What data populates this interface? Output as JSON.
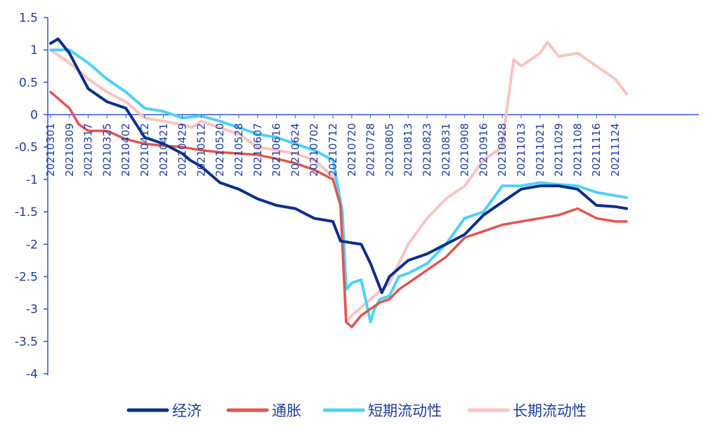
{
  "chart_data": {
    "type": "line",
    "ylim": [
      -4,
      1.5
    ],
    "y_ticks": [
      "1.5",
      "1",
      "0.5",
      "0",
      "-0.5",
      "-1",
      "-1.5",
      "-2",
      "-2.5",
      "-3",
      "-3.5",
      "-4"
    ],
    "x_tick_labels": [
      "20210301",
      "20210309",
      "20210317",
      "20210325",
      "20210402",
      "20210412",
      "20210421",
      "20210429",
      "20210512",
      "20210520",
      "20210528",
      "20210607",
      "20210616",
      "20210624",
      "20210702",
      "20210712",
      "20210720",
      "20210728",
      "20210805",
      "20210813",
      "20210823",
      "20210831",
      "20210908",
      "20210916",
      "20210928",
      "20211013",
      "20211021",
      "20211029",
      "20211108",
      "20211116",
      "20211124"
    ],
    "legend_position": "bottom",
    "series": [
      {
        "name": "经济",
        "color": "#0b2f8a",
        "x": [
          0.0,
          0.4,
          1.0,
          2.0,
          3.0,
          4.0,
          5.0,
          6.0,
          7.0,
          7.4,
          8.0,
          9.0,
          10.0,
          11.0,
          12.0,
          13.0,
          14.0,
          15.0,
          15.4,
          16.0,
          16.5,
          17.0,
          17.6,
          18.0,
          19.0,
          20.0,
          21.0,
          22.0,
          23.0,
          24.0,
          25.0,
          26.0,
          27.0,
          28.0,
          29.0,
          30.0,
          30.6
        ],
        "values": [
          1.1,
          1.17,
          0.95,
          0.4,
          0.2,
          0.1,
          -0.35,
          -0.45,
          -0.6,
          -0.7,
          -0.8,
          -1.05,
          -1.15,
          -1.3,
          -1.4,
          -1.45,
          -1.6,
          -1.65,
          -1.95,
          -1.98,
          -2.0,
          -2.3,
          -2.75,
          -2.5,
          -2.25,
          -2.15,
          -2.0,
          -1.85,
          -1.55,
          -1.35,
          -1.15,
          -1.1,
          -1.1,
          -1.15,
          -1.4,
          -1.42,
          -1.45
        ]
      },
      {
        "name": "通胀",
        "color": "#e05550",
        "x": [
          0.0,
          1.0,
          1.5,
          2.0,
          3.0,
          4.0,
          5.0,
          6.0,
          7.0,
          8.0,
          9.0,
          10.0,
          11.0,
          12.0,
          13.0,
          14.0,
          15.0,
          15.4,
          15.7,
          16.0,
          16.5,
          17.0,
          17.5,
          18.0,
          18.5,
          19.0,
          20.0,
          21.0,
          22.0,
          23.0,
          24.0,
          25.0,
          26.0,
          27.0,
          28.0,
          29.0,
          30.0,
          30.6
        ],
        "values": [
          0.35,
          0.1,
          -0.15,
          -0.25,
          -0.25,
          -0.38,
          -0.45,
          -0.48,
          -0.5,
          -0.55,
          -0.58,
          -0.6,
          -0.62,
          -0.68,
          -0.75,
          -0.85,
          -1.0,
          -1.4,
          -3.2,
          -3.28,
          -3.1,
          -3.0,
          -2.9,
          -2.85,
          -2.7,
          -2.6,
          -2.4,
          -2.2,
          -1.9,
          -1.8,
          -1.7,
          -1.65,
          -1.6,
          -1.55,
          -1.45,
          -1.6,
          -1.65,
          -1.65
        ]
      },
      {
        "name": "短期流动性",
        "color": "#4fd1f7",
        "x": [
          0.0,
          1.0,
          2.0,
          3.0,
          4.0,
          5.0,
          6.0,
          7.0,
          8.0,
          9.0,
          10.0,
          11.0,
          12.0,
          13.0,
          14.0,
          15.0,
          15.5,
          15.7,
          16.0,
          16.5,
          17.0,
          17.2,
          17.5,
          18.0,
          18.5,
          19.0,
          20.0,
          21.0,
          22.0,
          23.0,
          24.0,
          25.0,
          26.0,
          27.0,
          28.0,
          29.0,
          30.0,
          30.6
        ],
        "values": [
          1.0,
          1.0,
          0.8,
          0.55,
          0.35,
          0.1,
          0.05,
          -0.05,
          -0.02,
          -0.1,
          -0.2,
          -0.3,
          -0.35,
          -0.45,
          -0.55,
          -0.7,
          -1.5,
          -2.7,
          -2.6,
          -2.55,
          -3.2,
          -3.0,
          -2.85,
          -2.8,
          -2.5,
          -2.45,
          -2.3,
          -2.0,
          -1.6,
          -1.5,
          -1.1,
          -1.1,
          -1.05,
          -1.08,
          -1.1,
          -1.2,
          -1.25,
          -1.28
        ]
      },
      {
        "name": "长期流动性",
        "color": "#f9c3c3",
        "x": [
          0.0,
          1.0,
          2.0,
          3.0,
          4.0,
          5.0,
          6.0,
          7.0,
          7.5,
          8.0,
          9.0,
          10.0,
          11.0,
          12.0,
          13.0,
          14.0,
          15.0,
          15.4,
          15.7,
          16.0,
          17.0,
          18.0,
          19.0,
          20.0,
          21.0,
          22.0,
          23.0,
          24.0,
          24.2,
          24.6,
          25.0,
          26.0,
          26.4,
          27.0,
          28.0,
          29.0,
          30.0,
          30.6
        ],
        "values": [
          1.0,
          0.8,
          0.55,
          0.35,
          0.2,
          -0.05,
          -0.1,
          -0.15,
          -0.2,
          -0.1,
          -0.2,
          -0.3,
          -0.5,
          -0.55,
          -0.6,
          -0.7,
          -0.95,
          -1.3,
          -3.2,
          -3.1,
          -2.85,
          -2.6,
          -2.0,
          -1.6,
          -1.3,
          -1.1,
          -0.7,
          -0.5,
          0.0,
          0.85,
          0.75,
          0.95,
          1.12,
          0.9,
          0.95,
          0.75,
          0.55,
          0.32
        ]
      }
    ]
  }
}
